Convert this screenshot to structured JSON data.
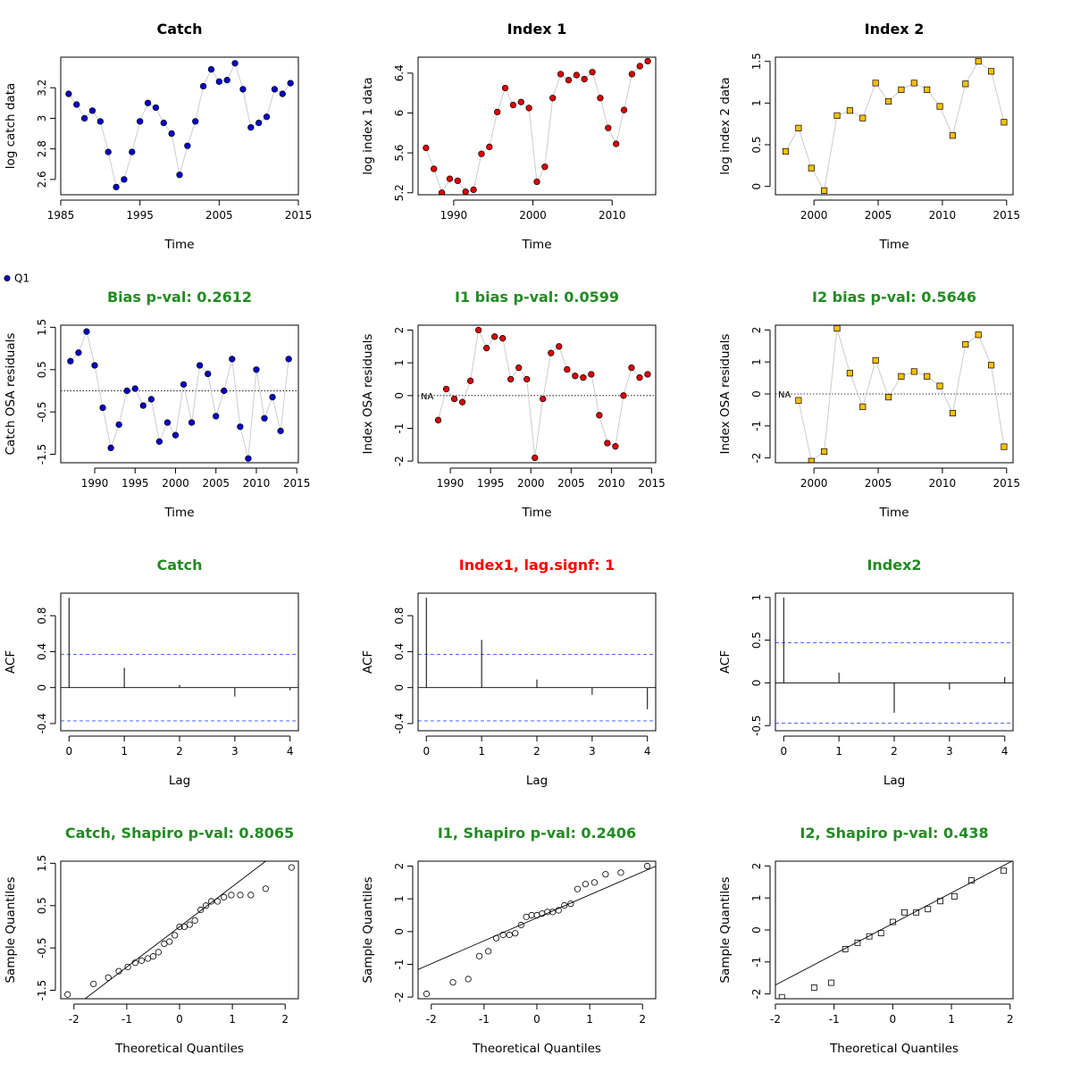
{
  "legend": {
    "label": "Q1"
  },
  "chart_data": [
    {
      "id": "catch_data",
      "type": "scatter",
      "title": "Catch",
      "title_color": "#000000",
      "xlabel": "Time",
      "ylabel": "log catch data",
      "xlim": [
        1985,
        2015
      ],
      "ylim": [
        2.5,
        3.4
      ],
      "xticks": [
        1985,
        1995,
        2005,
        2015
      ],
      "yticks": [
        2.6,
        2.8,
        3.0,
        3.2
      ],
      "connect": true,
      "marker": "circle",
      "fill": "#0000CD",
      "x": [
        1986,
        1987,
        1988,
        1989,
        1990,
        1991,
        1992,
        1993,
        1994,
        1995,
        1996,
        1997,
        1998,
        1999,
        2000,
        2001,
        2002,
        2003,
        2004,
        2005,
        2006,
        2007,
        2008,
        2009,
        2010,
        2011,
        2012,
        2013,
        2014
      ],
      "y": [
        3.16,
        3.09,
        3.0,
        3.05,
        2.98,
        2.78,
        2.55,
        2.6,
        2.78,
        2.98,
        3.1,
        3.07,
        2.97,
        2.9,
        2.63,
        2.82,
        2.98,
        3.21,
        3.32,
        3.24,
        3.25,
        3.36,
        3.19,
        2.94,
        2.97,
        3.01,
        3.19,
        3.16,
        3.23
      ]
    },
    {
      "id": "index1_data",
      "type": "scatter",
      "title": "Index 1",
      "title_color": "#000000",
      "xlabel": "Time",
      "ylabel": "log index 1 data",
      "xlim": [
        1985.5,
        2015.5
      ],
      "ylim": [
        5.18,
        6.56
      ],
      "xticks": [
        1990,
        2000,
        2010
      ],
      "yticks": [
        5.2,
        5.6,
        6.0,
        6.4
      ],
      "connect": true,
      "marker": "circle",
      "fill": "#E00000",
      "x": [
        1986.5,
        1987.5,
        1988.5,
        1989.5,
        1990.5,
        1991.5,
        1992.5,
        1993.5,
        1994.5,
        1995.5,
        1996.5,
        1997.5,
        1998.5,
        1999.5,
        2000.5,
        2001.5,
        2002.5,
        2003.5,
        2004.5,
        2005.5,
        2006.5,
        2007.5,
        2008.5,
        2009.5,
        2010.5,
        2011.5,
        2012.5,
        2013.5,
        2014.5
      ],
      "y": [
        5.65,
        5.44,
        5.2,
        5.34,
        5.32,
        5.21,
        5.23,
        5.59,
        5.66,
        6.01,
        6.25,
        6.08,
        6.11,
        6.05,
        5.31,
        5.46,
        6.15,
        6.39,
        6.33,
        6.38,
        6.34,
        6.41,
        6.15,
        5.85,
        5.69,
        6.03,
        6.39,
        6.47,
        6.52
      ]
    },
    {
      "id": "index2_data",
      "type": "scatter",
      "title": "Index 2",
      "title_color": "#000000",
      "xlabel": "Time",
      "ylabel": "log index 2 data",
      "xlim": [
        1997,
        2015.5
      ],
      "ylim": [
        -0.1,
        1.55
      ],
      "xticks": [
        2000,
        2005,
        2010,
        2015
      ],
      "yticks": [
        0.0,
        0.5,
        1.0,
        1.5
      ],
      "connect": true,
      "marker": "square",
      "fill": "#FFC000",
      "x": [
        1997.8,
        1998.8,
        1999.8,
        2000.8,
        2001.8,
        2002.8,
        2003.8,
        2004.8,
        2005.8,
        2006.8,
        2007.8,
        2008.8,
        2009.8,
        2010.8,
        2011.8,
        2012.8,
        2013.8,
        2014.8
      ],
      "y": [
        0.42,
        0.7,
        0.22,
        -0.05,
        0.85,
        0.91,
        0.82,
        1.24,
        1.02,
        1.16,
        1.24,
        1.16,
        0.96,
        0.61,
        1.23,
        1.5,
        1.38,
        0.77
      ]
    },
    {
      "id": "catch_resid",
      "type": "scatter",
      "title": "Bias p-val: 0.2612",
      "title_color": "#228B22",
      "xlabel": "Time",
      "ylabel": "Catch OSA residuals",
      "xlim": [
        1985.8,
        2015.2
      ],
      "ylim": [
        -1.7,
        1.55
      ],
      "xticks": [
        1990,
        1995,
        2000,
        2005,
        2010,
        2015
      ],
      "yticks": [
        -1.5,
        -0.5,
        0.5,
        1.5
      ],
      "connect": true,
      "marker": "circle",
      "fill": "#0000CD",
      "hline": 0,
      "na_label": "",
      "x": [
        1987,
        1988,
        1989,
        1990,
        1991,
        1992,
        1993,
        1994,
        1995,
        1996,
        1997,
        1998,
        1999,
        2000,
        2001,
        2002,
        2003,
        2004,
        2005,
        2006,
        2007,
        2008,
        2009,
        2010,
        2011,
        2012,
        2013,
        2014
      ],
      "y": [
        0.7,
        0.9,
        1.4,
        0.6,
        -0.4,
        -1.35,
        -0.8,
        0.0,
        0.05,
        -0.35,
        -0.2,
        -1.2,
        -0.75,
        -1.05,
        0.15,
        -0.75,
        0.6,
        0.4,
        -0.6,
        0.0,
        0.75,
        -0.85,
        -1.6,
        0.5,
        -0.65,
        -0.15,
        -0.95,
        0.75
      ]
    },
    {
      "id": "index1_resid",
      "type": "scatter",
      "title": "I1 bias p-val: 0.0599",
      "title_color": "#228B22",
      "xlabel": "Time",
      "ylabel": "Index OSA residuals",
      "xlim": [
        1986,
        2015.5
      ],
      "ylim": [
        -2.05,
        2.15
      ],
      "xticks": [
        1990,
        1995,
        2000,
        2005,
        2010,
        2015
      ],
      "yticks": [
        -2,
        -1,
        0,
        1,
        2
      ],
      "connect": true,
      "marker": "circle",
      "fill": "#E00000",
      "hline": 0,
      "na_label": "NA",
      "x": [
        1988.5,
        1989.5,
        1990.5,
        1991.5,
        1992.5,
        1993.5,
        1994.5,
        1995.5,
        1996.5,
        1997.5,
        1998.5,
        1999.5,
        2000.5,
        2001.5,
        2002.5,
        2003.5,
        2004.5,
        2005.5,
        2006.5,
        2007.5,
        2008.5,
        2009.5,
        2010.5,
        2011.5,
        2012.5,
        2013.5,
        2014.5
      ],
      "y": [
        -0.75,
        0.2,
        -0.1,
        -0.2,
        0.45,
        2.0,
        1.45,
        1.8,
        1.75,
        0.5,
        0.85,
        0.5,
        -1.9,
        -0.1,
        1.3,
        1.5,
        0.8,
        0.6,
        0.55,
        0.65,
        -0.6,
        -1.45,
        -1.55,
        0.0,
        0.85,
        0.55,
        0.65
      ]
    },
    {
      "id": "index2_resid",
      "type": "scatter",
      "title": "I2 bias p-val: 0.5646",
      "title_color": "#228B22",
      "xlabel": "Time",
      "ylabel": "Index OSA residuals",
      "xlim": [
        1997,
        2015.5
      ],
      "ylim": [
        -2.15,
        2.15
      ],
      "xticks": [
        2000,
        2005,
        2010,
        2015
      ],
      "yticks": [
        -2,
        -1,
        0,
        1,
        2
      ],
      "connect": true,
      "marker": "square",
      "fill": "#FFC000",
      "hline": 0,
      "na_label": "NA",
      "x": [
        1998.8,
        1999.8,
        2000.8,
        2001.8,
        2002.8,
        2003.8,
        2004.8,
        2005.8,
        2006.8,
        2007.8,
        2008.8,
        2009.8,
        2010.8,
        2011.8,
        2012.8,
        2013.8,
        2014.8
      ],
      "y": [
        -0.2,
        -2.1,
        -1.8,
        2.05,
        0.65,
        -0.4,
        1.05,
        -0.1,
        0.55,
        0.7,
        0.55,
        0.25,
        -0.6,
        1.55,
        1.85,
        0.9,
        -1.65
      ]
    },
    {
      "id": "catch_acf",
      "type": "bar",
      "title": "Catch",
      "title_color": "#228B22",
      "xlabel": "Lag",
      "ylabel": "ACF",
      "xlim": [
        -0.15,
        4.15
      ],
      "ylim": [
        -0.48,
        1.05
      ],
      "xticks": [
        0,
        1,
        2,
        3,
        4
      ],
      "yticks": [
        -0.4,
        0.0,
        0.4,
        0.8
      ],
      "lags": [
        0,
        1,
        2,
        3,
        4
      ],
      "values": [
        1.0,
        0.22,
        0.03,
        -0.1,
        -0.03
      ],
      "ci": 0.37
    },
    {
      "id": "index1_acf",
      "type": "bar",
      "title": "Index1, lag.signf: 1",
      "title_color": "#FF0000",
      "xlabel": "Lag",
      "ylabel": "ACF",
      "xlim": [
        -0.15,
        4.15
      ],
      "ylim": [
        -0.48,
        1.05
      ],
      "xticks": [
        0,
        1,
        2,
        3,
        4
      ],
      "yticks": [
        -0.4,
        0.0,
        0.4,
        0.8
      ],
      "lags": [
        0,
        1,
        2,
        3,
        4
      ],
      "values": [
        1.0,
        0.53,
        0.09,
        -0.08,
        -0.24
      ],
      "ci": 0.37
    },
    {
      "id": "index2_acf",
      "type": "bar",
      "title": "Index2",
      "title_color": "#228B22",
      "xlabel": "Lag",
      "ylabel": "ACF",
      "xlim": [
        -0.15,
        4.15
      ],
      "ylim": [
        -0.56,
        1.05
      ],
      "xticks": [
        0,
        1,
        2,
        3,
        4
      ],
      "yticks": [
        -0.5,
        0.0,
        0.5,
        1.0
      ],
      "lags": [
        0,
        1,
        2,
        3,
        4
      ],
      "values": [
        1.0,
        0.12,
        -0.35,
        -0.08,
        0.07
      ],
      "ci": 0.47
    },
    {
      "id": "catch_qq",
      "type": "scatter",
      "title": "Catch, Shapiro p-val: 0.8065",
      "title_color": "#228B22",
      "xlabel": "Theoretical Quantiles",
      "ylabel": "Sample Quantiles",
      "xlim": [
        -2.25,
        2.25
      ],
      "ylim": [
        -1.7,
        1.55
      ],
      "xticks": [
        -2,
        -1,
        0,
        1,
        2
      ],
      "yticks": [
        -1.5,
        -0.5,
        0.5,
        1.5
      ],
      "marker": "open-circle",
      "qqline": [
        0.0,
        0.95
      ],
      "x": [
        -2.12,
        -1.63,
        -1.35,
        -1.15,
        -0.98,
        -0.84,
        -0.72,
        -0.6,
        -0.5,
        -0.4,
        -0.29,
        -0.19,
        -0.09,
        0.0,
        0.09,
        0.19,
        0.29,
        0.4,
        0.5,
        0.6,
        0.72,
        0.84,
        0.98,
        1.15,
        1.35,
        1.63,
        2.12
      ],
      "y": [
        -1.6,
        -1.35,
        -1.2,
        -1.05,
        -0.95,
        -0.85,
        -0.8,
        -0.75,
        -0.7,
        -0.6,
        -0.4,
        -0.35,
        -0.2,
        0.0,
        0.0,
        0.05,
        0.15,
        0.4,
        0.5,
        0.6,
        0.6,
        0.7,
        0.75,
        0.75,
        0.75,
        0.9,
        1.4
      ]
    },
    {
      "id": "index1_qq",
      "type": "scatter",
      "title": "I1, Shapiro p-val: 0.2406",
      "title_color": "#228B22",
      "xlabel": "Theoretical Quantiles",
      "ylabel": "Sample Quantiles",
      "xlim": [
        -2.25,
        2.25
      ],
      "ylim": [
        -2.05,
        2.15
      ],
      "xticks": [
        -2,
        -1,
        0,
        1,
        2
      ],
      "yticks": [
        -2,
        -1,
        0,
        1,
        2
      ],
      "marker": "open-circle",
      "qqline": [
        0.42,
        0.7
      ],
      "x": [
        -2.09,
        -1.59,
        -1.3,
        -1.09,
        -0.92,
        -0.77,
        -0.64,
        -0.52,
        -0.41,
        -0.3,
        -0.2,
        -0.1,
        0.0,
        0.1,
        0.2,
        0.3,
        0.41,
        0.52,
        0.64,
        0.77,
        0.92,
        1.09,
        1.3,
        1.59,
        2.09
      ],
      "y": [
        -1.9,
        -1.55,
        -1.45,
        -0.75,
        -0.6,
        -0.2,
        -0.1,
        -0.1,
        -0.05,
        0.2,
        0.45,
        0.5,
        0.5,
        0.55,
        0.6,
        0.6,
        0.65,
        0.8,
        0.85,
        1.3,
        1.45,
        1.5,
        1.75,
        1.8,
        2.0
      ]
    },
    {
      "id": "index2_qq",
      "type": "scatter",
      "title": "I2, Shapiro p-val: 0.438",
      "title_color": "#228B22",
      "xlabel": "Theoretical Quantiles",
      "ylabel": "Sample Quantiles",
      "xlim": [
        -2.0,
        2.05
      ],
      "ylim": [
        -2.15,
        2.15
      ],
      "xticks": [
        -2,
        -1,
        0,
        1,
        2
      ],
      "yticks": [
        -2,
        -1,
        0,
        1,
        2
      ],
      "marker": "open-square",
      "qqline": [
        0.2,
        0.96
      ],
      "x": [
        -1.89,
        -1.34,
        -1.05,
        -0.81,
        -0.6,
        -0.4,
        -0.2,
        0.0,
        0.2,
        0.4,
        0.6,
        0.81,
        1.05,
        1.34,
        1.89
      ],
      "y": [
        -2.1,
        -1.8,
        -1.65,
        -0.6,
        -0.4,
        -0.2,
        -0.1,
        0.25,
        0.55,
        0.55,
        0.65,
        0.9,
        1.05,
        1.55,
        1.85
      ]
    }
  ]
}
